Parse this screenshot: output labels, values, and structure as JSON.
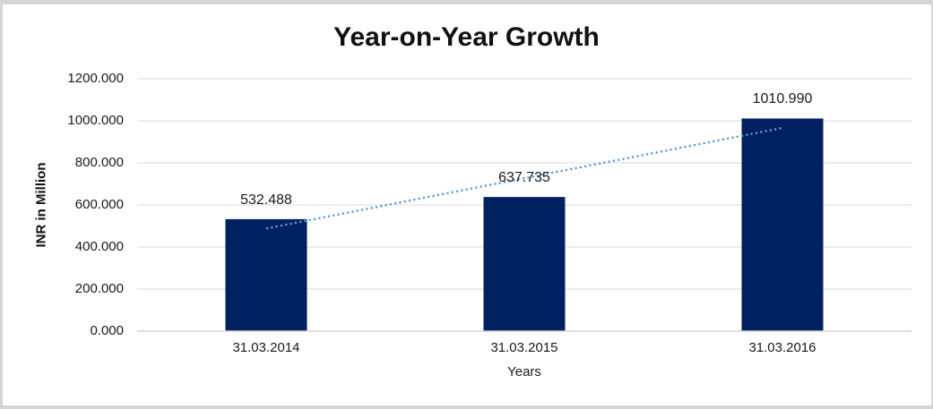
{
  "chart_data": {
    "type": "bar",
    "title": "Year-on-Year Growth",
    "xlabel": "Years",
    "ylabel": "INR in Million",
    "categories": [
      "31.03.2014",
      "31.03.2015",
      "31.03.2016"
    ],
    "values": [
      532.488,
      637.735,
      1010.99
    ],
    "data_labels": [
      "532.488",
      "637.735",
      "1010.990"
    ],
    "ylim": [
      0,
      1200
    ],
    "y_ticks": [
      0,
      200,
      400,
      600,
      800,
      1000,
      1200
    ],
    "y_tick_labels": [
      "0.000",
      "200.000",
      "400.000",
      "600.000",
      "800.000",
      "1000.000",
      "1200.000"
    ],
    "grid": true,
    "legend": false,
    "trendline": {
      "type": "linear",
      "style": "dotted"
    },
    "colors": {
      "bar": "#002060",
      "trendline": "#5B9BD5",
      "gridline": "#D9D9D9",
      "axis_line": "#D4D4D4",
      "text": "#1A1A1A",
      "frame_border": "#D5D5D5",
      "background": "#FFFFFF"
    }
  }
}
